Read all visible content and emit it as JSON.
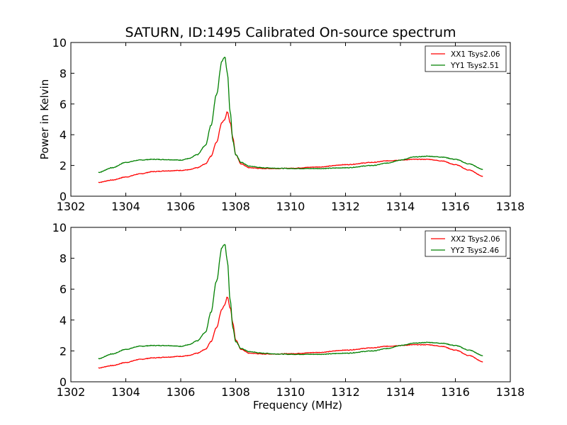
{
  "title": "SATURN, ID:1495 Calibrated On-source spectrum",
  "chart_data": [
    {
      "type": "line",
      "title": "SATURN, ID:1495 Calibrated On-source spectrum",
      "xlabel": "",
      "ylabel": "Power in Kelvin",
      "xlim": [
        1302,
        1318
      ],
      "ylim": [
        0,
        10
      ],
      "xticks": [
        "1302",
        "1304",
        "1306",
        "1308",
        "1310",
        "1312",
        "1314",
        "1316",
        "1318"
      ],
      "yticks": [
        "0",
        "2",
        "4",
        "6",
        "8",
        "10"
      ],
      "legend_position": "top-right",
      "grid": false,
      "series": [
        {
          "name": "XX1 Tsys2.06",
          "color": "#ff0000",
          "x": [
            1303.0,
            1303.5,
            1304.0,
            1304.5,
            1305.0,
            1305.5,
            1306.0,
            1306.3,
            1306.6,
            1306.9,
            1307.1,
            1307.3,
            1307.5,
            1307.6,
            1307.7,
            1307.8,
            1307.9,
            1308.0,
            1308.2,
            1308.5,
            1309.0,
            1309.5,
            1310.0,
            1311.0,
            1312.0,
            1313.0,
            1313.5,
            1314.0,
            1314.5,
            1315.0,
            1315.5,
            1316.0,
            1316.5,
            1317.0
          ],
          "y": [
            0.9,
            1.05,
            1.25,
            1.45,
            1.6,
            1.65,
            1.68,
            1.72,
            1.85,
            2.1,
            2.6,
            3.5,
            4.8,
            5.0,
            5.5,
            4.8,
            3.8,
            2.7,
            2.1,
            1.85,
            1.8,
            1.8,
            1.82,
            1.9,
            2.05,
            2.2,
            2.3,
            2.35,
            2.4,
            2.4,
            2.3,
            2.05,
            1.7,
            1.3
          ]
        },
        {
          "name": "YY1 Tsys2.51",
          "color": "#008000",
          "x": [
            1303.0,
            1303.5,
            1304.0,
            1304.5,
            1305.0,
            1305.5,
            1306.0,
            1306.3,
            1306.6,
            1306.9,
            1307.1,
            1307.3,
            1307.5,
            1307.6,
            1307.7,
            1307.8,
            1307.9,
            1308.0,
            1308.2,
            1308.5,
            1309.0,
            1309.5,
            1310.0,
            1311.0,
            1312.0,
            1313.0,
            1313.5,
            1314.0,
            1314.5,
            1315.0,
            1315.5,
            1316.0,
            1316.5,
            1317.0
          ],
          "y": [
            1.55,
            1.85,
            2.2,
            2.35,
            2.4,
            2.38,
            2.35,
            2.45,
            2.7,
            3.3,
            4.6,
            6.6,
            8.8,
            9.1,
            8.0,
            5.5,
            3.6,
            2.7,
            2.2,
            1.95,
            1.85,
            1.82,
            1.8,
            1.8,
            1.85,
            2.0,
            2.15,
            2.35,
            2.55,
            2.6,
            2.55,
            2.4,
            2.1,
            1.75
          ]
        }
      ]
    },
    {
      "type": "line",
      "title": "",
      "xlabel": "Frequency (MHz)",
      "ylabel": "",
      "xlim": [
        1302,
        1318
      ],
      "ylim": [
        0,
        10
      ],
      "xticks": [
        "1302",
        "1304",
        "1306",
        "1308",
        "1310",
        "1312",
        "1314",
        "1316",
        "1318"
      ],
      "yticks": [
        "0",
        "2",
        "4",
        "6",
        "8",
        "10"
      ],
      "legend_position": "top-right",
      "grid": false,
      "series": [
        {
          "name": "XX2 Tsys2.06",
          "color": "#ff0000",
          "x": [
            1303.0,
            1303.5,
            1304.0,
            1304.5,
            1305.0,
            1305.5,
            1306.0,
            1306.3,
            1306.6,
            1306.9,
            1307.1,
            1307.3,
            1307.5,
            1307.6,
            1307.7,
            1307.8,
            1307.9,
            1308.0,
            1308.2,
            1308.5,
            1309.0,
            1309.5,
            1310.0,
            1311.0,
            1312.0,
            1313.0,
            1313.5,
            1314.0,
            1314.5,
            1315.0,
            1315.5,
            1316.0,
            1316.5,
            1317.0
          ],
          "y": [
            0.9,
            1.05,
            1.25,
            1.45,
            1.55,
            1.6,
            1.65,
            1.7,
            1.85,
            2.1,
            2.6,
            3.5,
            4.7,
            5.0,
            5.5,
            4.8,
            3.8,
            2.7,
            2.1,
            1.85,
            1.8,
            1.8,
            1.82,
            1.9,
            2.05,
            2.2,
            2.3,
            2.35,
            2.4,
            2.4,
            2.3,
            2.05,
            1.7,
            1.3
          ]
        },
        {
          "name": "YY2 Tsys2.46",
          "color": "#008000",
          "x": [
            1303.0,
            1303.5,
            1304.0,
            1304.5,
            1305.0,
            1305.5,
            1306.0,
            1306.3,
            1306.6,
            1306.9,
            1307.1,
            1307.3,
            1307.5,
            1307.6,
            1307.7,
            1307.8,
            1307.9,
            1308.0,
            1308.2,
            1308.5,
            1309.0,
            1309.5,
            1310.0,
            1311.0,
            1312.0,
            1313.0,
            1313.5,
            1314.0,
            1314.5,
            1315.0,
            1315.5,
            1316.0,
            1316.5,
            1317.0
          ],
          "y": [
            1.5,
            1.8,
            2.1,
            2.3,
            2.35,
            2.35,
            2.3,
            2.4,
            2.65,
            3.2,
            4.5,
            6.5,
            8.7,
            8.95,
            7.8,
            5.3,
            3.5,
            2.6,
            2.15,
            1.95,
            1.85,
            1.8,
            1.78,
            1.78,
            1.85,
            2.0,
            2.15,
            2.35,
            2.5,
            2.55,
            2.5,
            2.35,
            2.05,
            1.7
          ]
        }
      ]
    }
  ]
}
